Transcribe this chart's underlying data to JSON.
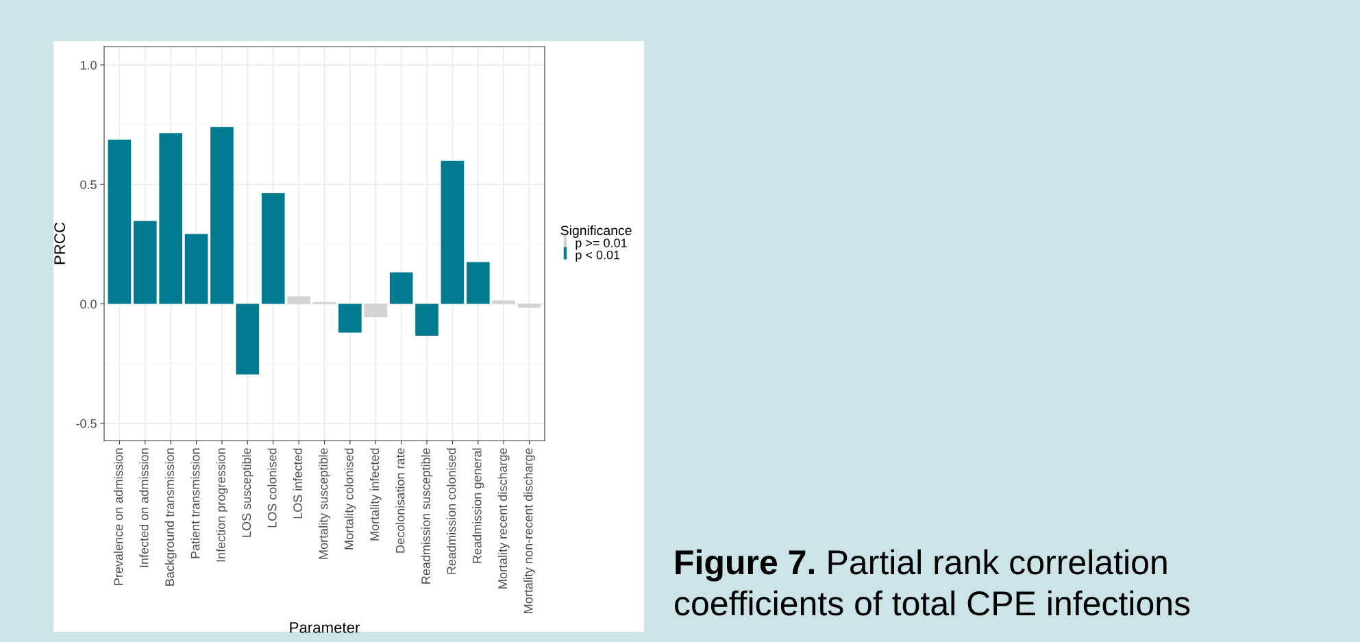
{
  "chart_data": {
    "type": "bar",
    "categories": [
      "Prevalence on admission",
      "Infected on admission",
      "Background transmission",
      "Patient transmission",
      "Infection progression",
      "LOS susceptible",
      "LOS colonised",
      "LOS infected",
      "Mortality susceptible",
      "Mortality colonised",
      "Mortality infected",
      "Decolonisation rate",
      "Readmission susceptible",
      "Readmission colonised",
      "Readmission general",
      "Mortality recent discharge",
      "Mortality non-recent discharge"
    ],
    "series": [
      {
        "name": "p >= 0.01",
        "color": "#d3d3d3",
        "values": [
          null,
          null,
          null,
          null,
          null,
          null,
          null,
          0.032,
          0.008,
          null,
          -0.056,
          null,
          null,
          null,
          null,
          0.015,
          -0.016
        ]
      },
      {
        "name": "p < 0.01",
        "color": "#007a8f",
        "values": [
          0.688,
          0.347,
          0.715,
          0.293,
          0.741,
          -0.295,
          0.463,
          null,
          null,
          -0.12,
          null,
          0.132,
          -0.133,
          0.599,
          0.175,
          null,
          null
        ]
      }
    ],
    "xlabel": "Parameter",
    "ylabel": "PRCC",
    "legend_title": "Significance",
    "legend": "right",
    "ylim": [
      -0.572,
      1.077
    ],
    "yticks": [
      {
        "value": -0.5,
        "label": "-0.5"
      },
      {
        "value": 0.0,
        "label": "0.0"
      },
      {
        "value": 0.5,
        "label": "0.5"
      },
      {
        "value": 1.0,
        "label": "1.0"
      }
    ],
    "grid": true,
    "annotations": [
      "Figure 7.",
      "Partial rank correlation coefficients of total CPE infections"
    ]
  }
}
